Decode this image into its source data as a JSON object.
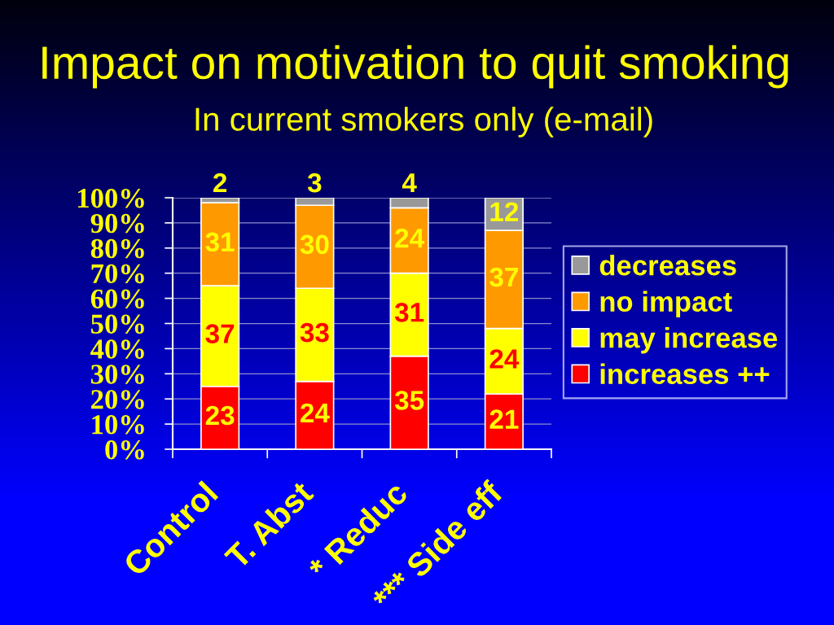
{
  "chart_data": {
    "type": "bar",
    "title": "Impact on motivation to quit smoking",
    "subtitle": "In current smokers only (e-mail)",
    "categories": [
      "Control",
      "T. Abst",
      "* Reduc",
      "*** Side eff"
    ],
    "stacked": true,
    "series": [
      {
        "name": "increases ++",
        "color": "#ff0000",
        "values": [
          25,
          27,
          37,
          22
        ]
      },
      {
        "name": "may increase",
        "color": "#ffff00",
        "values": [
          40,
          37,
          33,
          26
        ]
      },
      {
        "name": "no impact",
        "color": "#ff9900",
        "values": [
          33,
          33,
          26,
          39
        ]
      },
      {
        "name": "decreases",
        "color": "#999999",
        "values": [
          2,
          3,
          4,
          13
        ]
      }
    ],
    "annotations": [
      {
        "text": "23",
        "x": "Control",
        "y": 25
      },
      {
        "text": "37",
        "x": "Control",
        "y": 65
      },
      {
        "text": "31",
        "x": "Control",
        "y": 98
      },
      {
        "text": "2",
        "x": "Control",
        "y": 100
      },
      {
        "text": "24",
        "x": "T. Abst",
        "y": 27
      },
      {
        "text": "33",
        "x": "T. Abst",
        "y": 64
      },
      {
        "text": "30",
        "x": "T. Abst",
        "y": 97
      },
      {
        "text": "3",
        "x": "T. Abst",
        "y": 100
      },
      {
        "text": "35",
        "x": "* Reduc",
        "y": 37
      },
      {
        "text": "31",
        "x": "* Reduc",
        "y": 70
      },
      {
        "text": "24",
        "x": "* Reduc",
        "y": 96
      },
      {
        "text": "4",
        "x": "* Reduc",
        "y": 100
      },
      {
        "text": "21",
        "x": "*** Side eff",
        "y": 22
      },
      {
        "text": "24",
        "x": "*** Side eff",
        "y": 48
      },
      {
        "text": "37",
        "x": "*** Side eff",
        "y": 87
      },
      {
        "text": "12",
        "x": "*** Side eff",
        "y": 100
      }
    ],
    "ylim": [
      0,
      100
    ],
    "yticks": [
      {
        "value": 0,
        "label": "0%"
      },
      {
        "value": 10,
        "label": "10%"
      },
      {
        "value": 20,
        "label": "20%"
      },
      {
        "value": 30,
        "label": "30%"
      },
      {
        "value": 40,
        "label": "40%"
      },
      {
        "value": 50,
        "label": "50%"
      },
      {
        "value": 60,
        "label": "60%"
      },
      {
        "value": 70,
        "label": "70%"
      },
      {
        "value": 80,
        "label": "80%"
      },
      {
        "value": 90,
        "label": "90%"
      },
      {
        "value": 100,
        "label": "100%"
      }
    ],
    "grid": "y",
    "legend": "right"
  }
}
